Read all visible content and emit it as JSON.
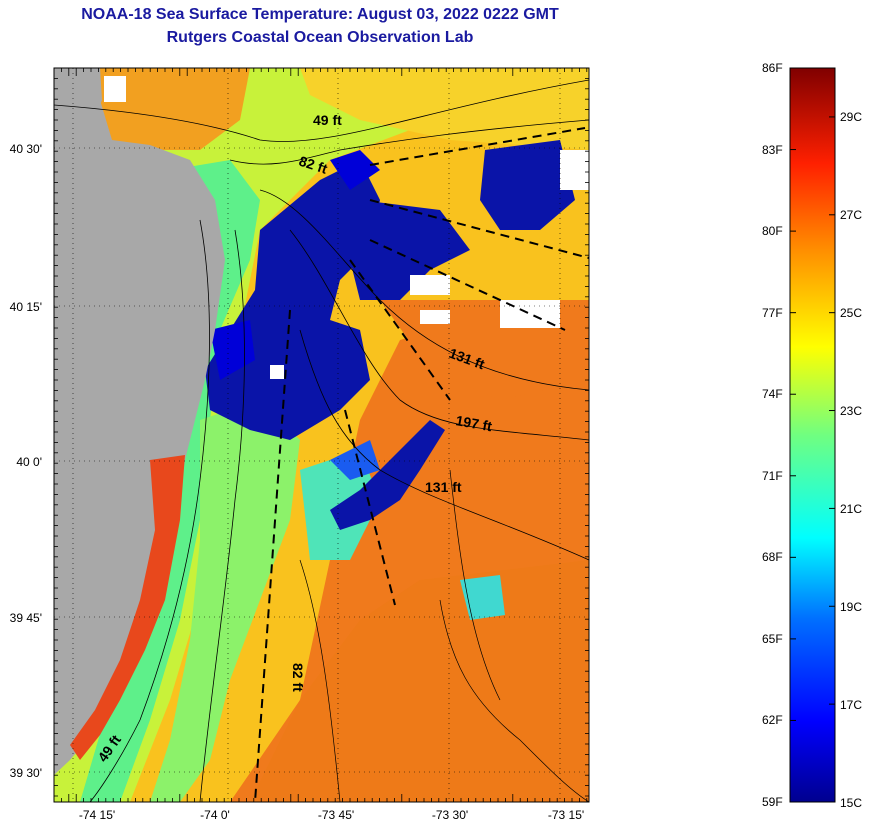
{
  "title": {
    "line1": "NOAA-18 Sea Surface Temperature:  August 03, 2022 0222 GMT",
    "line2": "Rutgers Coastal Ocean Observation Lab"
  },
  "colors": {
    "title": "#1a1aa0",
    "land": "#a8a8a8",
    "cloud": "#ffffff"
  },
  "map": {
    "lat_ticks": [
      "40 30'",
      "40 15'",
      "40 0'",
      "39 45'",
      "39 30'"
    ],
    "lon_ticks": [
      "-74 15'",
      "-74 0'",
      "-73 45'",
      "-73 30'",
      "-73 15'"
    ],
    "isobath_labels": [
      {
        "text": "49 ft",
        "rotate": 0
      },
      {
        "text": "82 ft",
        "rotate": 18
      },
      {
        "text": "131 ft",
        "rotate": 20
      },
      {
        "text": "197 ft",
        "rotate": 10
      },
      {
        "text": "131 ft",
        "rotate": 0
      },
      {
        "text": "82 ft",
        "rotate": 90
      },
      {
        "text": "49 ft",
        "rotate": -55
      }
    ]
  },
  "colorbar": {
    "fahrenheit_ticks": [
      "86F",
      "83F",
      "80F",
      "77F",
      "74F",
      "71F",
      "68F",
      "65F",
      "62F",
      "59F"
    ],
    "celsius_ticks": [
      "29C",
      "27C",
      "25C",
      "23C",
      "21C",
      "19C",
      "17C",
      "15C"
    ],
    "range_f": [
      59,
      86
    ],
    "range_c": [
      15,
      30
    ]
  }
}
